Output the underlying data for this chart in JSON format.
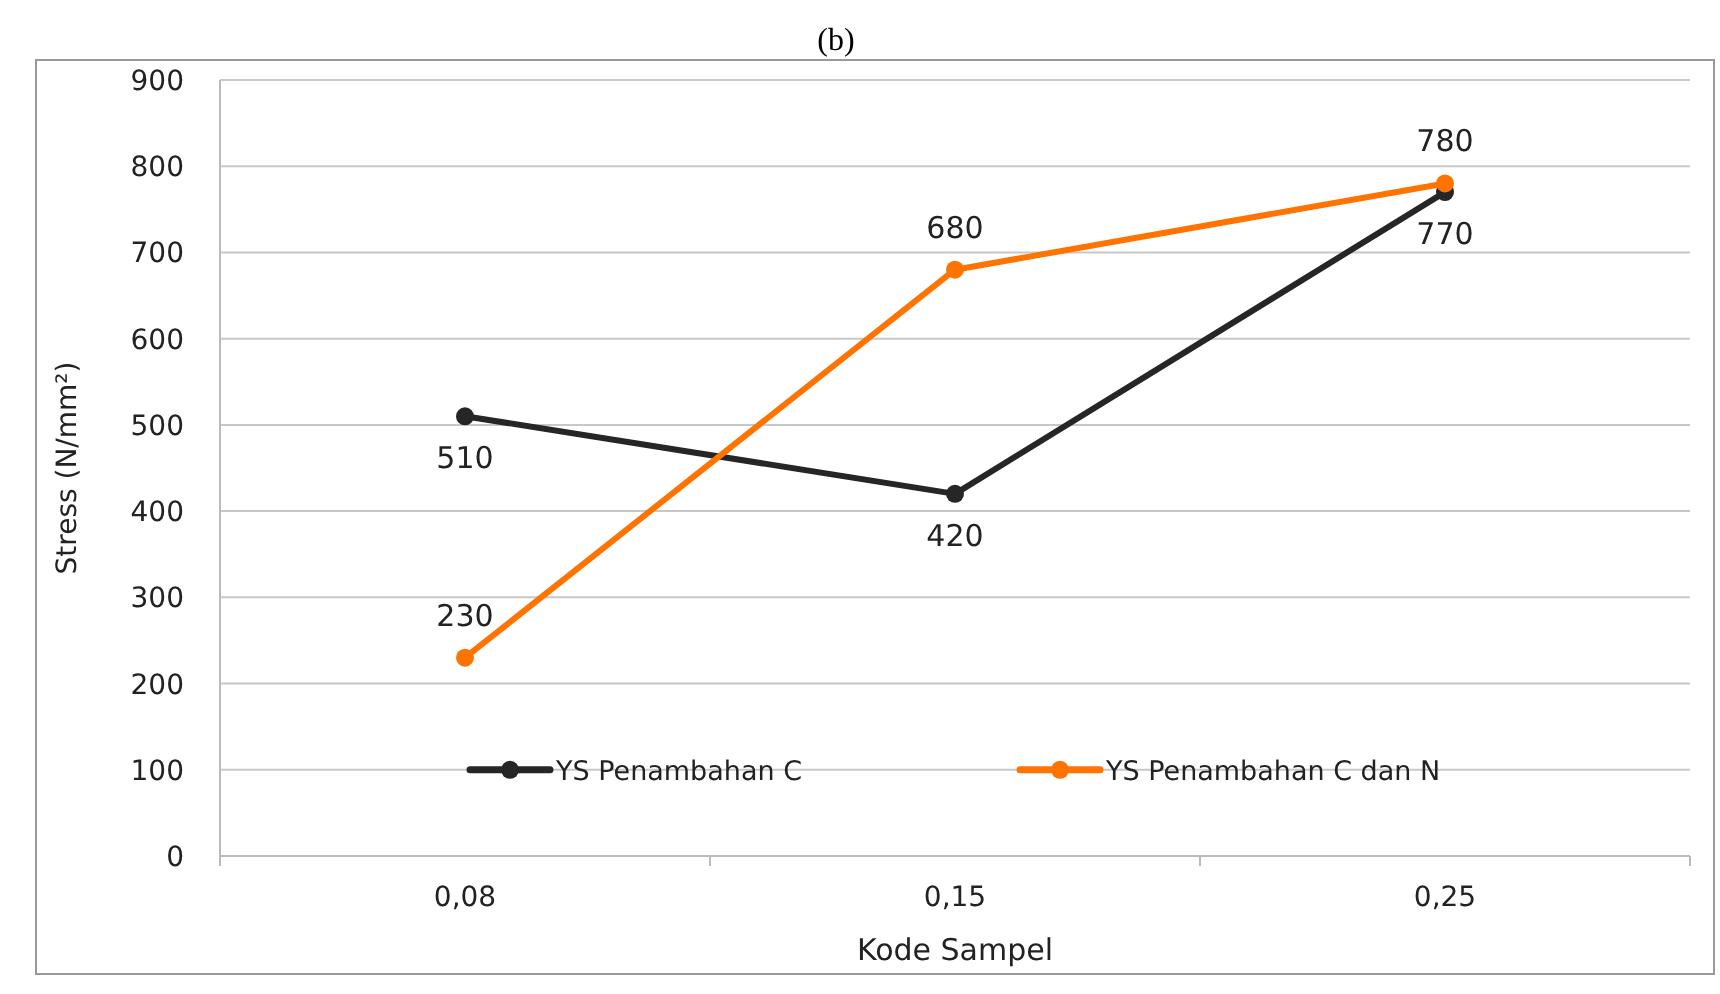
{
  "chart_data": {
    "type": "line",
    "title": "(b)",
    "xlabel": "Kode Sampel",
    "ylabel": "Stress (N/mm²)",
    "categories": [
      "0,08",
      "0,15",
      "0,25"
    ],
    "series": [
      {
        "name": "YS Penambahan C",
        "color": "#262626",
        "values": [
          510,
          420,
          770
        ]
      },
      {
        "name": "YS Penambahan C dan N",
        "color": "#ff7300",
        "values": [
          230,
          680,
          780
        ]
      }
    ],
    "ylim": [
      0,
      900
    ],
    "yticks": [
      0,
      100,
      200,
      300,
      400,
      500,
      600,
      700,
      800,
      900
    ],
    "grid": "y",
    "legend": "bottom",
    "marker": "circle",
    "data_labels": true
  }
}
